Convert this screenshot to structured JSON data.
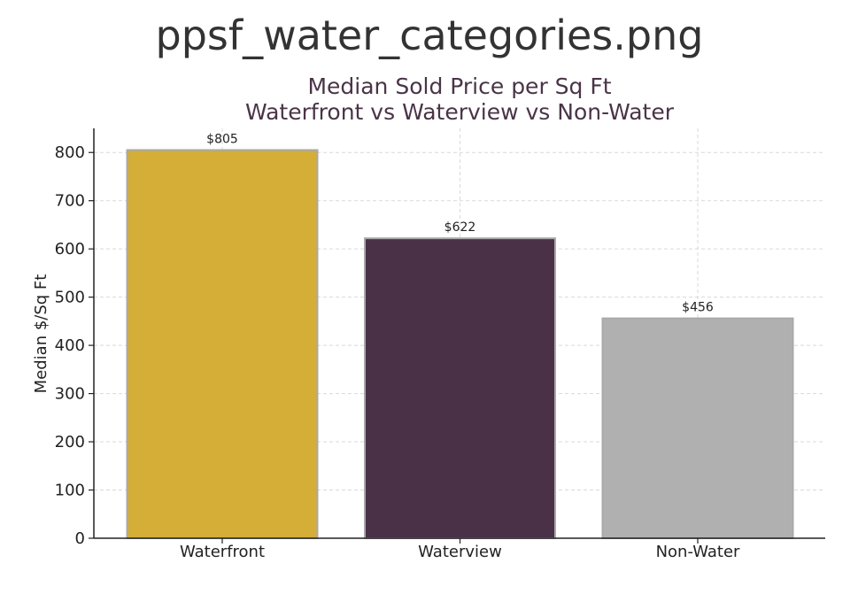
{
  "file_title": "ppsf_water_categories.png",
  "chart_data": {
    "type": "bar",
    "title_line1": "Median Sold Price per Sq Ft",
    "title_line2": "Waterfront vs Waterview vs Non-Water",
    "ylabel": "Median $/Sq Ft",
    "xlabel": "",
    "categories": [
      "Waterfront",
      "Waterview",
      "Non-Water"
    ],
    "values": [
      805,
      622,
      456
    ],
    "value_labels": [
      "$805",
      "$622",
      "$456"
    ],
    "colors": [
      "#d4ae37",
      "#4a3148",
      "#b0b0b0"
    ],
    "ylim": [
      0,
      850
    ],
    "yticks": [
      0,
      100,
      200,
      300,
      400,
      500,
      600,
      700,
      800
    ],
    "grid": true
  }
}
